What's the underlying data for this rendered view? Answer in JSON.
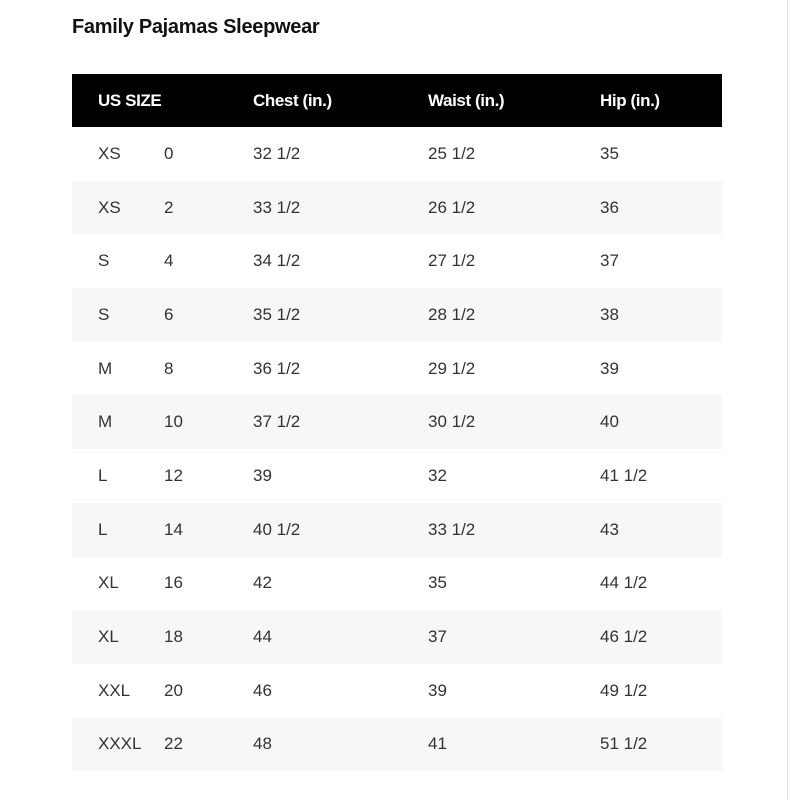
{
  "title": "Family Pajamas Sleepwear",
  "table": {
    "headers": [
      "US SIZE",
      "Chest (in.)",
      "Waist (in.)",
      "Hip (in.)"
    ],
    "rows": [
      [
        "XS",
        "0",
        "32 1/2",
        "25 1/2",
        "35"
      ],
      [
        "XS",
        "2",
        "33 1/2",
        "26 1/2",
        "36"
      ],
      [
        "S",
        "4",
        "34 1/2",
        "27 1/2",
        "37"
      ],
      [
        "S",
        "6",
        "35 1/2",
        "28 1/2",
        "38"
      ],
      [
        "M",
        "8",
        "36 1/2",
        "29 1/2",
        "39"
      ],
      [
        "M",
        "10",
        "37 1/2",
        "30 1/2",
        "40"
      ],
      [
        "L",
        "12",
        "39",
        "32",
        "41 1/2"
      ],
      [
        "L",
        "14",
        "40 1/2",
        "33 1/2",
        "43"
      ],
      [
        "XL",
        "16",
        "42",
        "35",
        "44 1/2"
      ],
      [
        "XL",
        "18",
        "44",
        "37",
        "46 1/2"
      ],
      [
        "XXL",
        "20",
        "46",
        "39",
        "49 1/2"
      ],
      [
        "XXXL",
        "22",
        "48",
        "41",
        "51 1/2"
      ]
    ]
  },
  "colors": {
    "header_bg": "#000000",
    "header_text": "#ffffff",
    "alt_row_bg": "#f7f7f7"
  }
}
